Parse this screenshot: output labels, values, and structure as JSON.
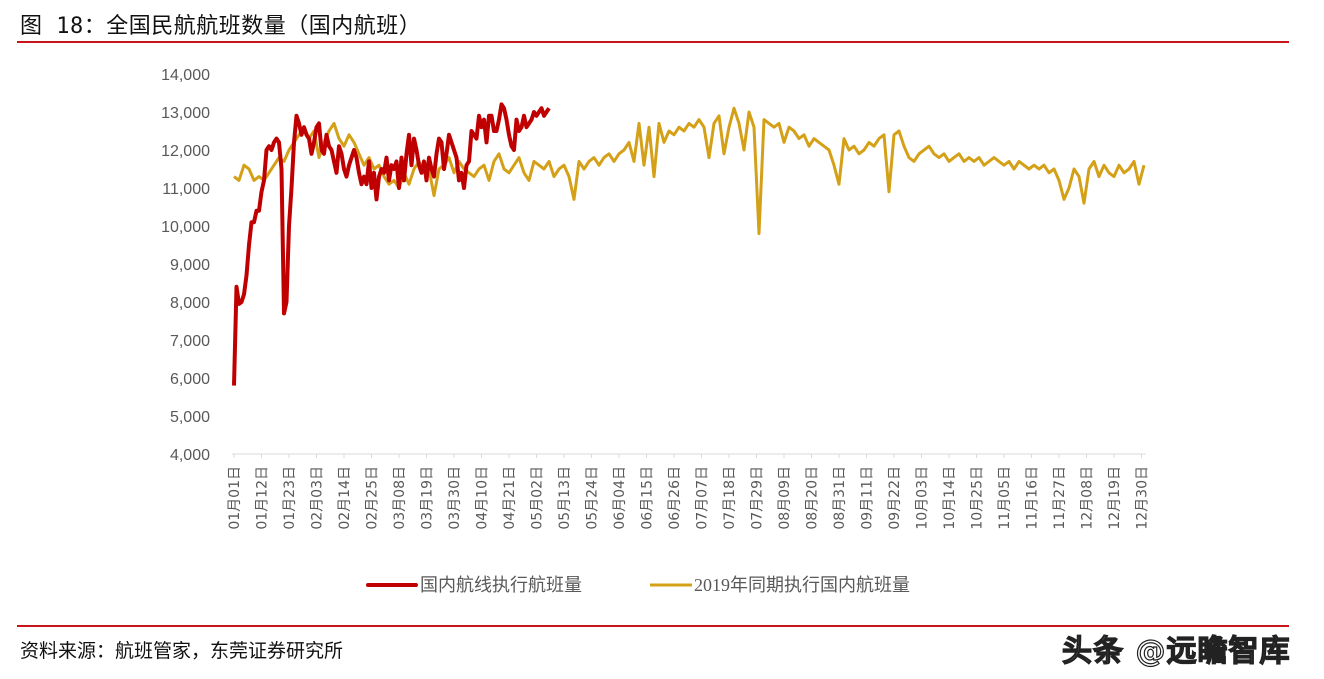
{
  "header": {
    "title": "图 18：全国民航航班数量（国内航班）"
  },
  "footer": {
    "source": "资料来源：航班管家，东莞证券研究所",
    "watermark": "头条 @远瞻智库"
  },
  "colors": {
    "rule": "#c8141b",
    "series_2020": "#c00000",
    "series_2019": "#d4a017",
    "axis_text": "#595959"
  },
  "chart_data": {
    "type": "line",
    "title": "全国民航航班数量（国内航班）",
    "xlabel": "",
    "ylabel": "",
    "ylim": [
      4000,
      14000
    ],
    "yticks": [
      4000,
      5000,
      6000,
      7000,
      8000,
      9000,
      10000,
      11000,
      12000,
      13000,
      14000
    ],
    "ytick_labels": [
      "4,000",
      "5,000",
      "6,000",
      "7,000",
      "8,000",
      "9,000",
      "10,000",
      "11,000",
      "12,000",
      "13,000",
      "14,000"
    ],
    "grid": false,
    "legend_position": "bottom",
    "xtick_labels": [
      "01月01日",
      "01月12日",
      "01月23日",
      "02月03日",
      "02月14日",
      "02月25日",
      "03月08日",
      "03月19日",
      "03月30日",
      "04月10日",
      "04月21日",
      "05月02日",
      "05月13日",
      "05月24日",
      "06月04日",
      "06月15日",
      "06月26日",
      "07月07日",
      "07月18日",
      "07月29日",
      "08月09日",
      "08月20日",
      "08月31日",
      "09月11日",
      "09月22日",
      "10月03日",
      "10月14日",
      "10月25日",
      "11月05日",
      "11月16日",
      "11月27日",
      "12月08日",
      "12月19日",
      "12月30日"
    ],
    "series": [
      {
        "name": "国内航线执行航班量",
        "color": "#c00000",
        "x_day": [
          0,
          1,
          2,
          3,
          4,
          5,
          6,
          7,
          8,
          9,
          10,
          11,
          12,
          13,
          14,
          15,
          16,
          17,
          18,
          19,
          20,
          21,
          22,
          23,
          24,
          25,
          26,
          27,
          28,
          29,
          30,
          31,
          32,
          33,
          34,
          35,
          36,
          37,
          38,
          39,
          40,
          41,
          42,
          43,
          44,
          45,
          46,
          47,
          48,
          49,
          50,
          51,
          52,
          53,
          54,
          55,
          56,
          57,
          58,
          59,
          60,
          61,
          62,
          63,
          64,
          65,
          66,
          67,
          68,
          69,
          70,
          71,
          72,
          73,
          74,
          75,
          76,
          77,
          78,
          79,
          80,
          81,
          82,
          83,
          84,
          85,
          86,
          87,
          88,
          89,
          90,
          91,
          92,
          93,
          94,
          95,
          96,
          97,
          98,
          99,
          100,
          101,
          102,
          103,
          104,
          105,
          106,
          107,
          108,
          109,
          110,
          111,
          112,
          113,
          114,
          115,
          116,
          117,
          118,
          119,
          120,
          121,
          122,
          123,
          124,
          125,
          126
        ],
        "values": [
          5800,
          8400,
          7950,
          8000,
          8200,
          8700,
          9500,
          10100,
          10100,
          10400,
          10400,
          10900,
          11200,
          12000,
          12100,
          12000,
          12200,
          12300,
          12200,
          11500,
          7700,
          8000,
          10000,
          11000,
          12200,
          12900,
          12700,
          12400,
          12600,
          12400,
          12300,
          11900,
          12200,
          12600,
          12700,
          12000,
          11900,
          12400,
          12100,
          12000,
          11700,
          11400,
          12100,
          11900,
          11500,
          11300,
          11600,
          11800,
          12000,
          11800,
          11400,
          11100,
          11300,
          11100,
          11700,
          11000,
          11400,
          10700,
          11300,
          11500,
          11400,
          11800,
          11200,
          11600,
          11500,
          11700,
          11000,
          11800,
          11200,
          11900,
          12400,
          11600,
          12300,
          12000,
          11600,
          11400,
          11700,
          11200,
          11800,
          11500,
          11300,
          11900,
          12300,
          12200,
          11500,
          11900,
          12400,
          12200,
          12000,
          11800,
          11200,
          11400,
          11000,
          11600,
          11700,
          12500,
          12400,
          12300,
          12900,
          12600,
          12800,
          12200,
          12900,
          12900,
          12500,
          12500,
          12800,
          13200,
          13100,
          12800,
          12400,
          12100,
          12000,
          12800,
          12500,
          12600,
          12900,
          12600,
          12700,
          12800,
          13000,
          12900,
          13000,
          13100,
          12900,
          13000,
          13100
        ]
      },
      {
        "name": "2019年同期执行国内航班量",
        "color": "#d4a017",
        "x_day": [
          0,
          2,
          4,
          6,
          8,
          10,
          12,
          14,
          16,
          18,
          20,
          22,
          24,
          26,
          28,
          30,
          32,
          34,
          36,
          38,
          40,
          42,
          44,
          46,
          48,
          50,
          52,
          54,
          56,
          58,
          60,
          62,
          64,
          66,
          68,
          70,
          72,
          74,
          76,
          78,
          80,
          82,
          84,
          86,
          88,
          90,
          92,
          94,
          96,
          98,
          100,
          102,
          104,
          106,
          108,
          110,
          112,
          114,
          116,
          118,
          120,
          122,
          124,
          126,
          128,
          130,
          132,
          134,
          136,
          138,
          140,
          142,
          144,
          146,
          148,
          150,
          152,
          154,
          156,
          158,
          160,
          162,
          164,
          166,
          168,
          170,
          172,
          174,
          176,
          178,
          180,
          182,
          184,
          186,
          188,
          190,
          192,
          194,
          196,
          198,
          200,
          202,
          204,
          206,
          208,
          210,
          212,
          214,
          216,
          218,
          220,
          222,
          224,
          226,
          228,
          230,
          232,
          234,
          236,
          238,
          240,
          242,
          244,
          246,
          248,
          250,
          252,
          254,
          256,
          258,
          260,
          262,
          264,
          266,
          268,
          270,
          272,
          274,
          276,
          278,
          280,
          282,
          284,
          286,
          288,
          290,
          292,
          294,
          296,
          298,
          300,
          302,
          304,
          306,
          308,
          310,
          312,
          314,
          316,
          318,
          320,
          322,
          324,
          326,
          328,
          330,
          332,
          334,
          336,
          338,
          340,
          342,
          344,
          346,
          348,
          350,
          352,
          354,
          356,
          358,
          360,
          362,
          364
        ],
        "values": [
          11300,
          11200,
          11600,
          11500,
          11200,
          11300,
          11200,
          11400,
          11600,
          11800,
          11700,
          12000,
          12200,
          12400,
          12600,
          12300,
          12500,
          11800,
          12200,
          12500,
          12700,
          12300,
          12100,
          12400,
          12200,
          11900,
          11600,
          11800,
          11500,
          11600,
          11300,
          11100,
          11200,
          11000,
          11400,
          11100,
          11500,
          11700,
          11400,
          11500,
          10800,
          11500,
          11600,
          11800,
          11400,
          11700,
          11500,
          11400,
          11300,
          11500,
          11600,
          11200,
          11700,
          11900,
          11500,
          11400,
          11600,
          11800,
          11400,
          11200,
          11700,
          11600,
          11500,
          11700,
          11300,
          11500,
          11600,
          11300,
          10700,
          11700,
          11500,
          11700,
          11800,
          11600,
          11800,
          11900,
          11700,
          11900,
          12000,
          12200,
          11700,
          12700,
          11600,
          12600,
          11300,
          12700,
          12200,
          12500,
          12400,
          12600,
          12500,
          12700,
          12600,
          12800,
          12600,
          11800,
          12700,
          12900,
          11900,
          12600,
          13100,
          12700,
          12000,
          13000,
          12600,
          9800,
          12800,
          12700,
          12600,
          12700,
          12200,
          12600,
          12500,
          12300,
          12400,
          12100,
          12300,
          12200,
          12100,
          12000,
          11600,
          11100,
          12300,
          12000,
          12100,
          11900,
          12000,
          12200,
          12100,
          12300,
          12400,
          10900,
          12400,
          12500,
          12100,
          11800,
          11700,
          11900,
          12000,
          12100,
          11900,
          11800,
          11900,
          11700,
          11800,
          11900,
          11700,
          11800,
          11700,
          11800,
          11600,
          11700,
          11800,
          11700,
          11600,
          11700,
          11500,
          11700,
          11600,
          11500,
          11600,
          11500,
          11600,
          11400,
          11500,
          11200,
          10700,
          11000,
          11500,
          11300,
          10600,
          11500,
          11700,
          11300,
          11600,
          11400,
          11300,
          11600,
          11400,
          11500,
          11700,
          11100,
          11600,
          11500
        ]
      }
    ]
  },
  "legend": [
    {
      "label": "国内航线执行航班量",
      "color": "#c00000"
    },
    {
      "label": "2019年同期执行国内航班量",
      "color": "#d4a017"
    }
  ]
}
